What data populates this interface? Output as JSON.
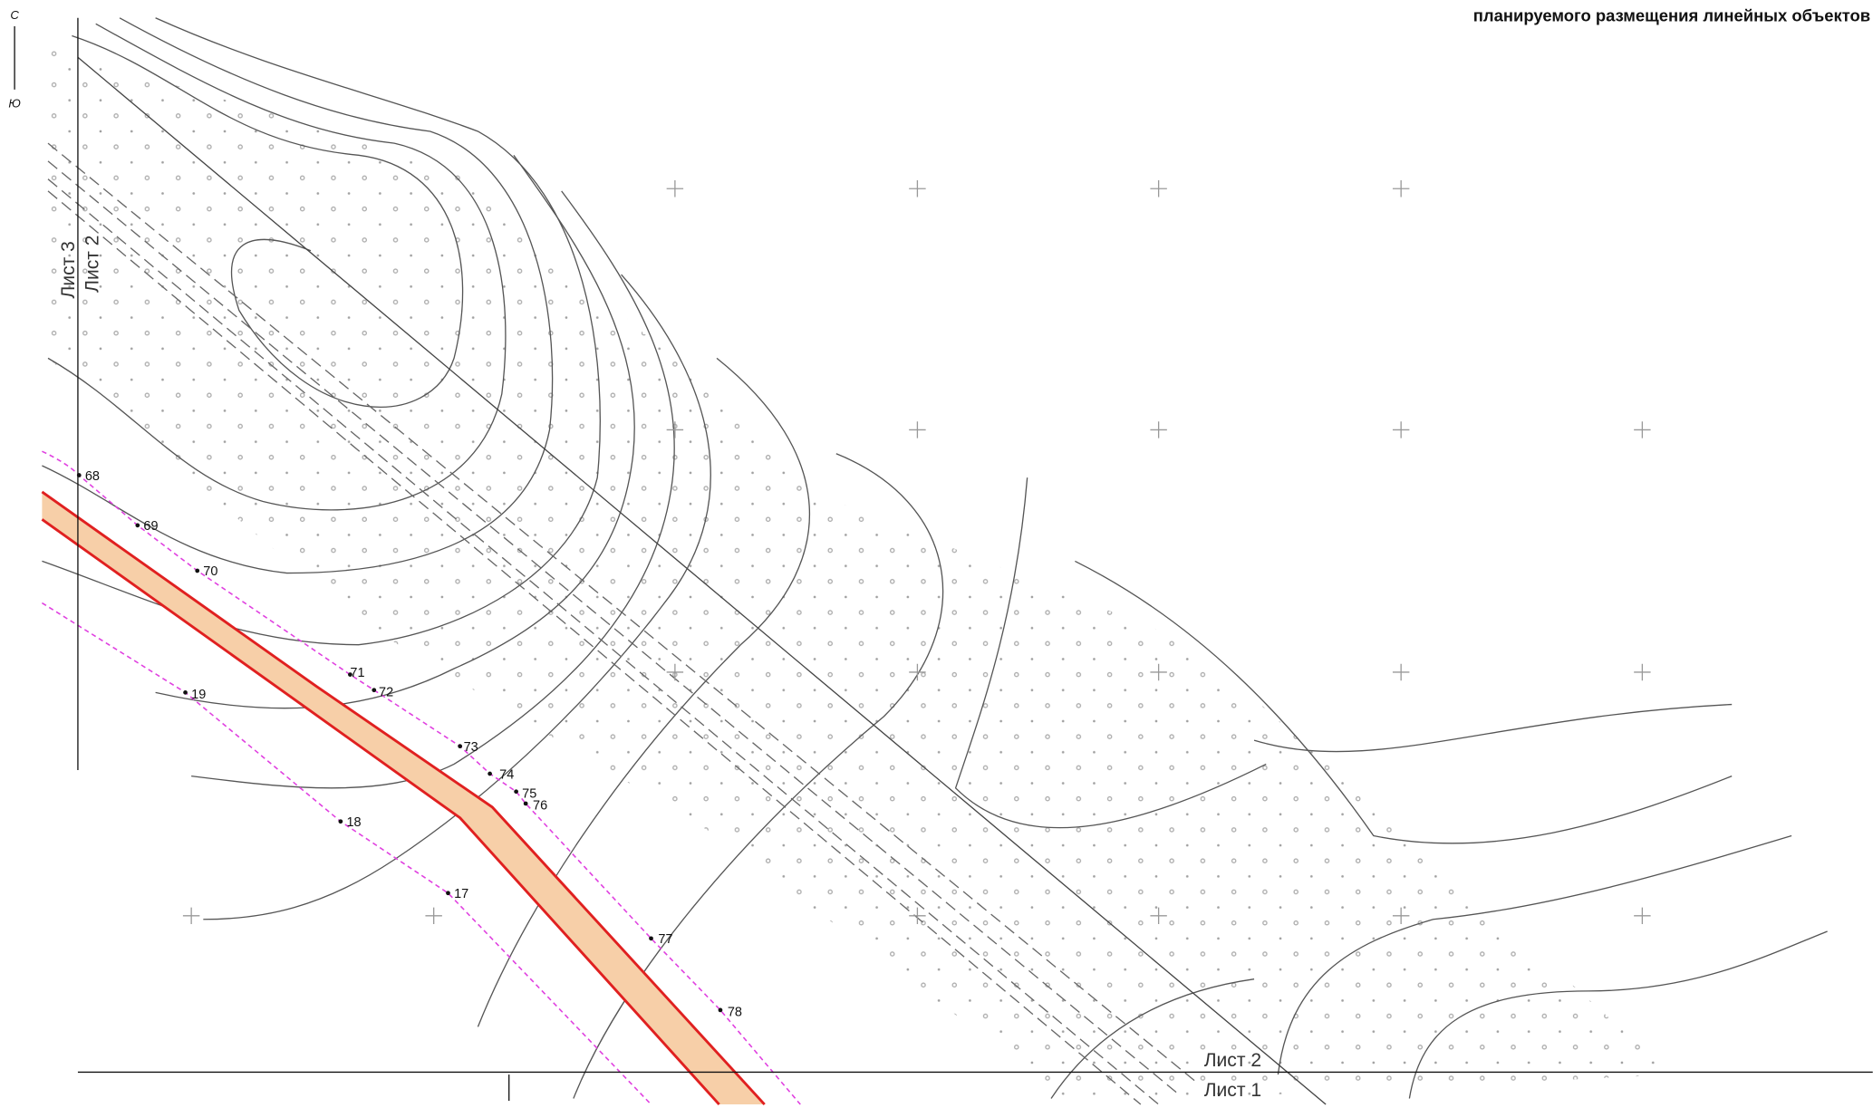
{
  "header": {
    "title": "планируемого размещения линейных объектов"
  },
  "compass": {
    "north": "С",
    "south": "Ю"
  },
  "sheets": [
    "Лист 3",
    "Лист 2",
    "Лист 2",
    "Лист 1"
  ],
  "points": [
    "68",
    "69",
    "70",
    "71",
    "72",
    "73",
    "74",
    "75",
    "76",
    "77",
    "78",
    "19",
    "18",
    "17"
  ]
}
